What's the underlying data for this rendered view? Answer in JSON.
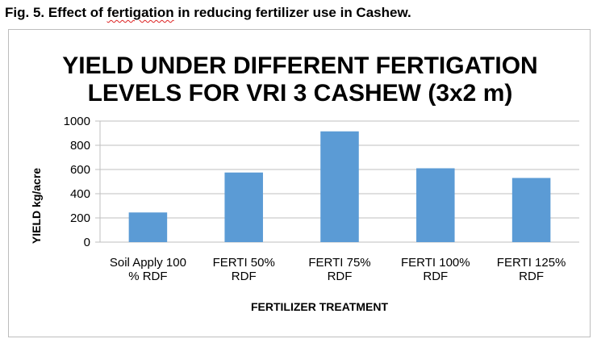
{
  "caption": {
    "prefix": "Fig. 5.  Effect of ",
    "squiggly_word": "fertigation",
    "suffix": " in reducing fertilizer use in Cashew."
  },
  "chart_data": {
    "type": "bar",
    "title_lines": [
      "YIELD UNDER DIFFERENT FERTIGATION",
      "LEVELS  FOR VRI 3 CASHEW (3x2 m)"
    ],
    "categories": [
      [
        "Soil Apply 100",
        "% RDF"
      ],
      [
        "FERTI 50%",
        "RDF"
      ],
      [
        "FERTI 75%",
        "RDF"
      ],
      [
        "FERTI 100%",
        "RDF"
      ],
      [
        "FERTI 125%",
        "RDF"
      ]
    ],
    "values": [
      245,
      575,
      915,
      610,
      530
    ],
    "xlabel": "FERTILIZER TREATMENT",
    "ylabel": "YIELD kg/acre",
    "ylim": [
      0,
      1000
    ],
    "yticks": [
      0,
      200,
      400,
      600,
      800,
      1000
    ],
    "grid": true,
    "bar_color": "#5b9bd5",
    "gridline_color": "#bfbfbf"
  }
}
